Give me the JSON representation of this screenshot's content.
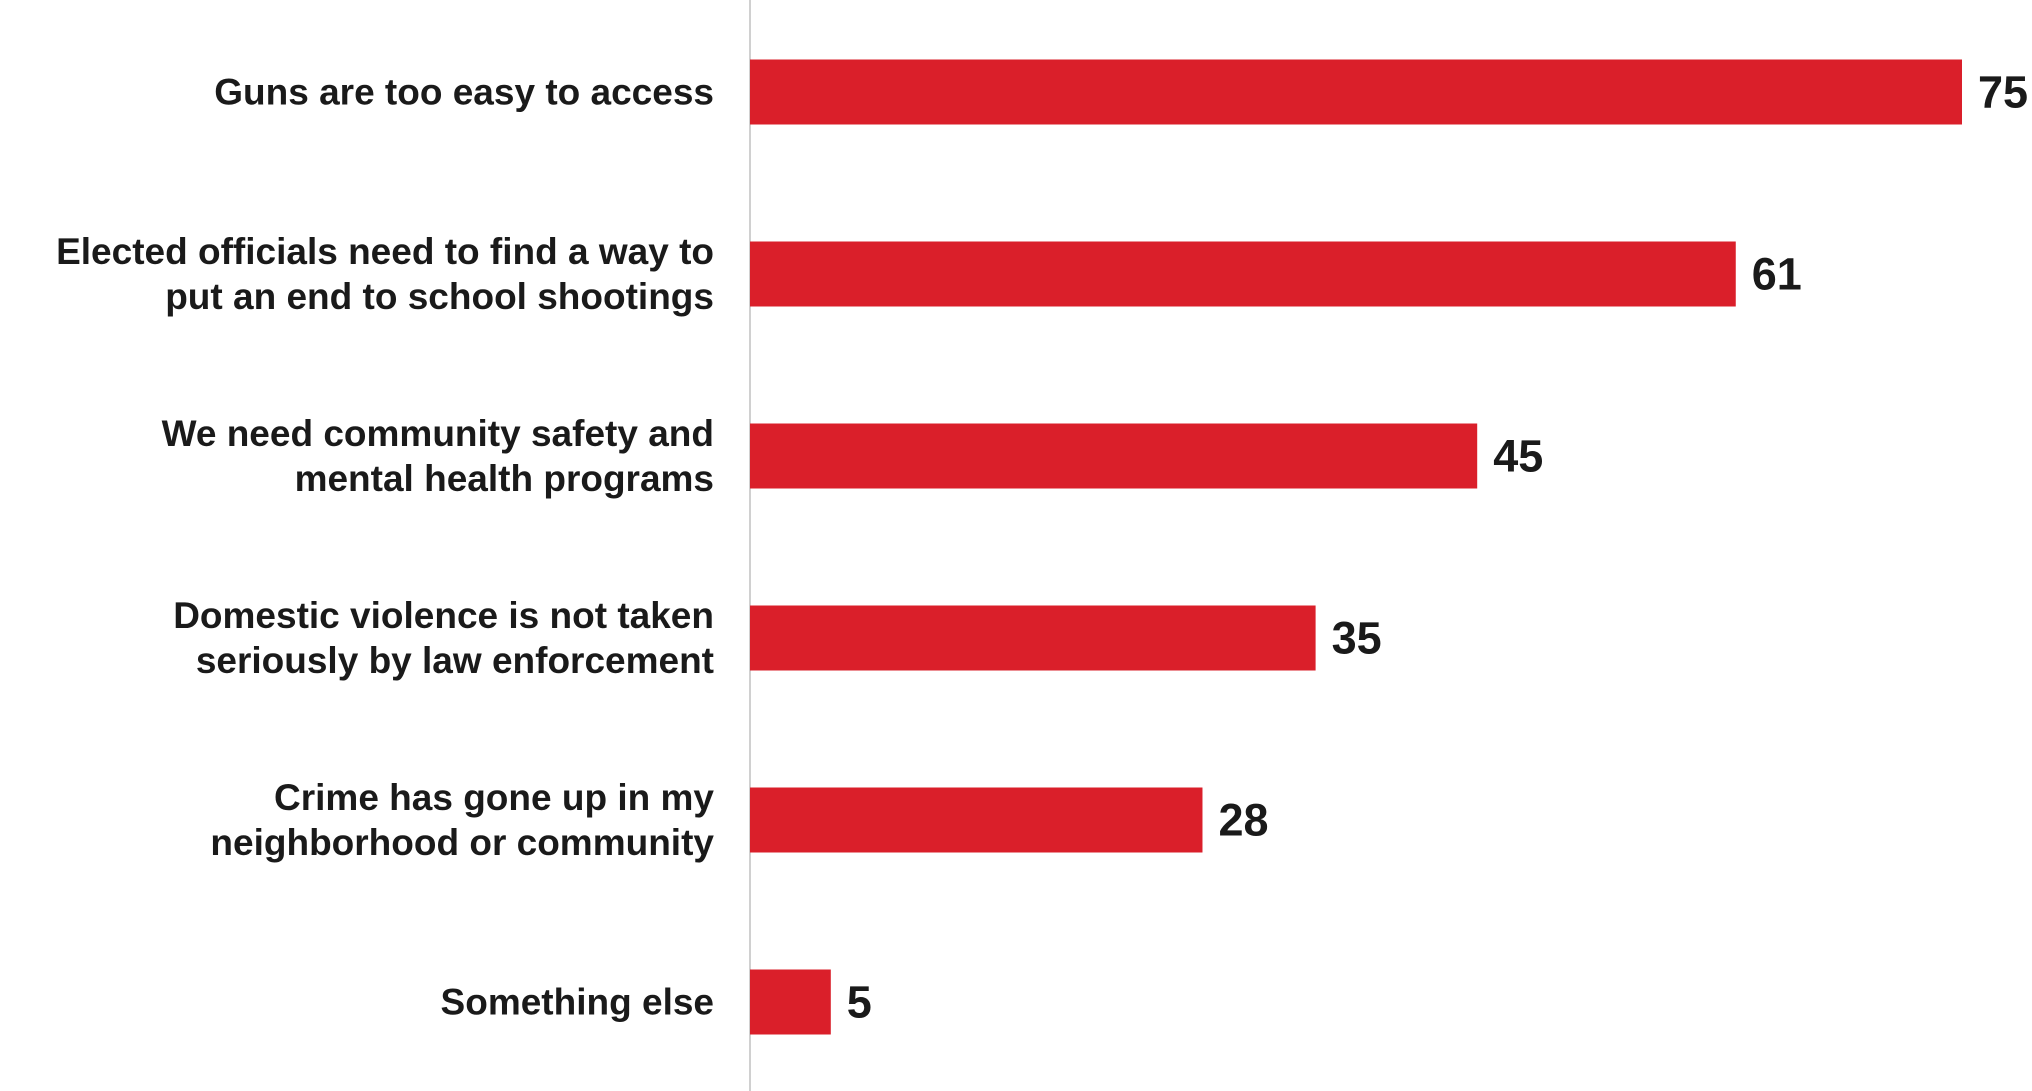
{
  "chart_data": {
    "type": "bar",
    "orientation": "horizontal",
    "categories": [
      [
        "Guns are too easy to access"
      ],
      [
        "Elected officials need to find a way to",
        "put an end to school shootings"
      ],
      [
        "We need community safety and",
        "mental health programs"
      ],
      [
        "Domestic violence is not taken",
        "seriously by law enforcement"
      ],
      [
        "Crime has gone up in my",
        "neighborhood or community"
      ],
      [
        "Something else"
      ]
    ],
    "values": [
      75,
      61,
      45,
      35,
      28,
      5
    ],
    "data_labels": [
      "75",
      "61",
      "45",
      "35",
      "28",
      "5"
    ],
    "title": "",
    "xlabel": "",
    "ylabel": "",
    "xlim": [
      0,
      75
    ],
    "grid": false,
    "legend": "none",
    "colors": {
      "bar": "#DA1F2A",
      "text": "#1a1a1a",
      "axis": "#d0d0d0"
    }
  }
}
